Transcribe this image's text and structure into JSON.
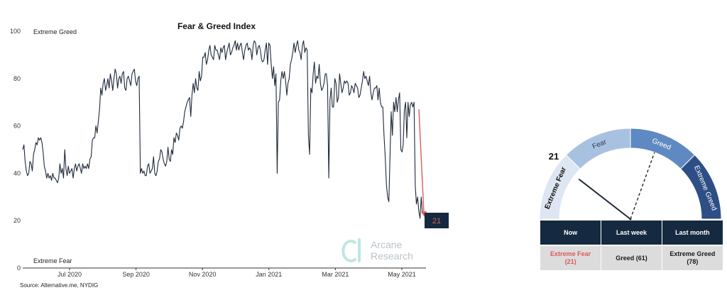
{
  "chart_data": [
    {
      "type": "line",
      "title": "Fear & Greed Index",
      "source": "Source: Alternative.me, NYDIG",
      "ylim": [
        0,
        100
      ],
      "y_ticks": [
        0,
        20,
        40,
        60,
        80,
        100
      ],
      "x_tick_labels": [
        "Jul 2020",
        "Sep 2020",
        "Nov 2020",
        "Jan 2021",
        "Mar 2021",
        "May 2021"
      ],
      "band_labels": {
        "top": "Extreme Greed",
        "bottom": "Extreme Fear"
      },
      "callout": {
        "value": "21",
        "color": "#e05a5a"
      },
      "series": [
        {
          "color": "#1e2a3a",
          "values": [
            50,
            52,
            45,
            41,
            39,
            40,
            45,
            44,
            41,
            48,
            50,
            53,
            52,
            55,
            54,
            55,
            53,
            49,
            43,
            41,
            38,
            40,
            38,
            39,
            37,
            40,
            38,
            38,
            37,
            36,
            38,
            44,
            40,
            42,
            38,
            50,
            42,
            39,
            43,
            40,
            41,
            42,
            38,
            42,
            44,
            41,
            43,
            44,
            42,
            40,
            44,
            42,
            43,
            42,
            44,
            42,
            46,
            47,
            54,
            55,
            55,
            60,
            57,
            62,
            67,
            76,
            73,
            78,
            80,
            75,
            77,
            80,
            76,
            82,
            79,
            75,
            80,
            84,
            82,
            76,
            80,
            81,
            78,
            82,
            83,
            76,
            75,
            80,
            81,
            79,
            77,
            82,
            83,
            84,
            79,
            77,
            80,
            81,
            40,
            42,
            40,
            41,
            39,
            39,
            43,
            44,
            40,
            41,
            42,
            47,
            40,
            39,
            41,
            45,
            46,
            50,
            49,
            46,
            44,
            43,
            45,
            51,
            46,
            45,
            50,
            48,
            55,
            53,
            57,
            56,
            54,
            59,
            60,
            59,
            62,
            66,
            68,
            70,
            71,
            72,
            64,
            73,
            78,
            74,
            80,
            76,
            75,
            83,
            79,
            81,
            89,
            89,
            91,
            86,
            88,
            92,
            94,
            90,
            89,
            88,
            94,
            92,
            92,
            90,
            88,
            93,
            91,
            93,
            94,
            88,
            91,
            93,
            95,
            90,
            91,
            93,
            94,
            96,
            92,
            95,
            92,
            94,
            95,
            91,
            88,
            92,
            94,
            95,
            92,
            93,
            92,
            88,
            94,
            96,
            95,
            90,
            93,
            94,
            92,
            88,
            87,
            88,
            92,
            95,
            86,
            95,
            94,
            86,
            80,
            85,
            77,
            82,
            40,
            70,
            71,
            79,
            83,
            80,
            83,
            79,
            73,
            78,
            80,
            86,
            88,
            91,
            95,
            91,
            94,
            96,
            92,
            91,
            88,
            94,
            96,
            91,
            93,
            92,
            56,
            48,
            76,
            74,
            82,
            87,
            78,
            81,
            80,
            86,
            78,
            75,
            76,
            78,
            82,
            82,
            77,
            38,
            71,
            76,
            68,
            68,
            80,
            78,
            70,
            72,
            82,
            78,
            74,
            76,
            79,
            78,
            79,
            78,
            73,
            74,
            77,
            76,
            74,
            78,
            77,
            76,
            72,
            73,
            76,
            79,
            83,
            80,
            81,
            79,
            77,
            81,
            74,
            71,
            74,
            76,
            76,
            77,
            71,
            76,
            70,
            68,
            68,
            56,
            47,
            35,
            30,
            28,
            48,
            66,
            56,
            70,
            66,
            72,
            66,
            71,
            74,
            50,
            49,
            52,
            67,
            70,
            55,
            70,
            64,
            69,
            70,
            68,
            70,
            35,
            27,
            30,
            24,
            21,
            30,
            23
          ]
        }
      ]
    },
    {
      "type": "gauge",
      "value": 21,
      "value_label": "21",
      "range": [
        0,
        100
      ],
      "bands": [
        {
          "label": "Extreme Fear",
          "from": 0,
          "to": 25,
          "color": "#dde6f2"
        },
        {
          "label": "Fear",
          "from": 25,
          "to": 50,
          "color": "#a9c1e1"
        },
        {
          "label": "Greed",
          "from": 50,
          "to": 75,
          "color": "#5f89c2"
        },
        {
          "label": "Extreme Greed",
          "from": 75,
          "to": 100,
          "color": "#2d4f86"
        }
      ],
      "reference_value": 61
    }
  ],
  "watermark": {
    "line1": "Arcane",
    "line2": "Research"
  },
  "comparison_table": {
    "headers": [
      "Now",
      "Last week",
      "Last month"
    ],
    "cells": [
      {
        "label": "Extreme Fear",
        "value": "(21)"
      },
      {
        "label": "Greed",
        "value": "(61)"
      },
      {
        "label": "Extreme Greed",
        "value": "(78)"
      }
    ],
    "now_color": "#e05a5a"
  }
}
